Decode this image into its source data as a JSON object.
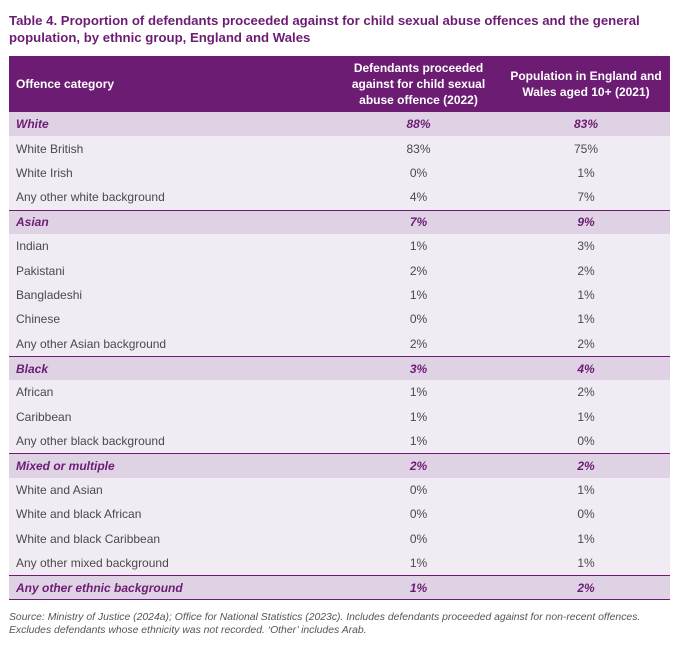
{
  "title": "Table 4. Proportion of defendants proceeded against for child sexual abuse offences and the general population, by ethnic group, England and Wales",
  "headers": {
    "category": "Offence category",
    "defendants": "Defendants proceeded against for child sexual abuse offence (2022)",
    "population": "Population in England and Wales aged 10+ (2021)"
  },
  "rows": [
    {
      "type": "group",
      "name": "White",
      "defendants": "88%",
      "population": "83%"
    },
    {
      "type": "sub",
      "name": "White British",
      "defendants": "83%",
      "population": "75%"
    },
    {
      "type": "sub",
      "name": "White Irish",
      "defendants": "0%",
      "population": "1%"
    },
    {
      "type": "sub",
      "name": "Any other white background",
      "defendants": "4%",
      "population": "7%"
    },
    {
      "type": "group",
      "name": "Asian",
      "defendants": "7%",
      "population": "9%"
    },
    {
      "type": "sub",
      "name": "Indian",
      "defendants": "1%",
      "population": "3%"
    },
    {
      "type": "sub",
      "name": "Pakistani",
      "defendants": "2%",
      "population": "2%"
    },
    {
      "type": "sub",
      "name": "Bangladeshi",
      "defendants": "1%",
      "population": "1%"
    },
    {
      "type": "sub",
      "name": "Chinese",
      "defendants": "0%",
      "population": "1%"
    },
    {
      "type": "sub",
      "name": "Any other Asian background",
      "defendants": "2%",
      "population": "2%"
    },
    {
      "type": "group",
      "name": "Black",
      "defendants": "3%",
      "population": "4%"
    },
    {
      "type": "sub",
      "name": "African",
      "defendants": "1%",
      "population": "2%"
    },
    {
      "type": "sub",
      "name": "Caribbean",
      "defendants": "1%",
      "population": "1%"
    },
    {
      "type": "sub",
      "name": "Any other black background",
      "defendants": "1%",
      "population": "0%"
    },
    {
      "type": "group",
      "name": "Mixed or multiple",
      "defendants": "2%",
      "population": "2%"
    },
    {
      "type": "sub",
      "name": "White and Asian",
      "defendants": "0%",
      "population": "1%"
    },
    {
      "type": "sub",
      "name": "White and black African",
      "defendants": "0%",
      "population": "0%"
    },
    {
      "type": "sub",
      "name": "White and black Caribbean",
      "defendants": "0%",
      "population": "1%"
    },
    {
      "type": "sub",
      "name": "Any other mixed background",
      "defendants": "1%",
      "population": "1%"
    },
    {
      "type": "group",
      "name": "Any other ethnic background",
      "defendants": "1%",
      "population": "2%"
    }
  ],
  "source": "Source: Ministry of Justice (2024a); Office for National Statistics (2023c). Includes defendants proceeded against for non-recent offences. Excludes defendants whose ethnicity was not recorded. ‘Other’ includes Arab.",
  "colors": {
    "accent": "#6c1d73",
    "group_bg": "#dfd2e4",
    "row_bg": "#f1ebf3"
  }
}
